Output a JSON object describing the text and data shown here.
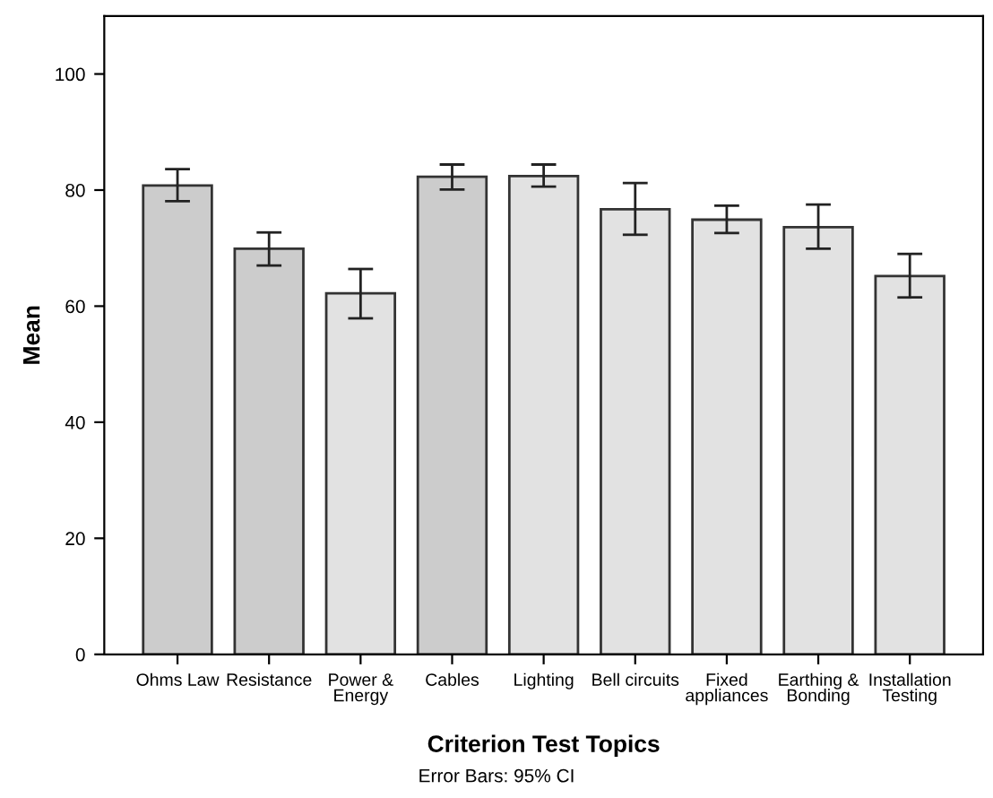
{
  "chart_data": {
    "type": "bar",
    "categories": [
      "Ohms Law",
      "Resistance",
      "Power &\nEnergy",
      "Cables",
      "Lighting",
      "Bell circuits",
      "Fixed\nappliances",
      "Earthing &\nBonding",
      "Installation\nTesting"
    ],
    "values": [
      80.8,
      69.9,
      62.2,
      82.3,
      82.4,
      76.7,
      74.9,
      73.6,
      65.2
    ],
    "errors": [
      [
        78.1,
        83.6
      ],
      [
        67.0,
        72.7
      ],
      [
        57.9,
        66.4
      ],
      [
        80.1,
        84.4
      ],
      [
        80.6,
        84.4
      ],
      [
        72.3,
        81.2
      ],
      [
        72.6,
        77.3
      ],
      [
        69.9,
        77.5
      ],
      [
        61.5,
        69.0
      ]
    ],
    "colors": [
      "#cccccc",
      "#cccccc",
      "#e2e2e2",
      "#cccccc",
      "#e2e2e2",
      "#e2e2e2",
      "#e2e2e2",
      "#e2e2e2",
      "#e2e2e2"
    ],
    "xlabel": "Criterion Test Topics",
    "ylabel": "Mean",
    "ylim": [
      0,
      110
    ],
    "yticks": [
      0,
      20,
      40,
      60,
      80,
      100
    ],
    "annotations": [
      "Error Bars: 95% CI"
    ],
    "grid": false,
    "legend": false
  }
}
